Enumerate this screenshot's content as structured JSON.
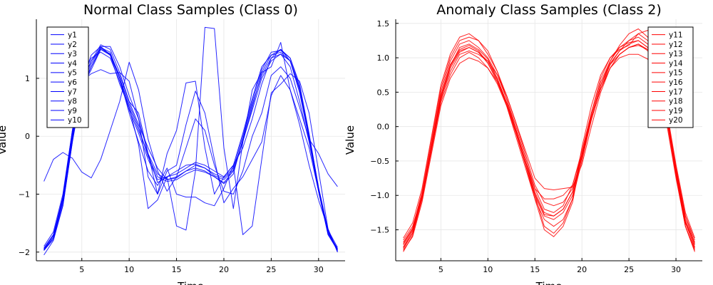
{
  "chart_data": [
    {
      "type": "line",
      "title": "Normal Class Samples (Class 0)",
      "xlabel": "Time",
      "ylabel": "Value",
      "xlim": [
        0.2,
        32.8
      ],
      "ylim": [
        -2.15,
        2.02
      ],
      "xticks": [
        5,
        10,
        15,
        20,
        25,
        30
      ],
      "yticks": [
        -2,
        -1,
        0,
        1
      ],
      "grid": true,
      "legend_position": "top-left",
      "line_color": "#0000ff",
      "x": [
        1,
        2,
        3,
        4,
        5,
        6,
        7,
        8,
        9,
        10,
        11,
        12,
        13,
        14,
        15,
        16,
        17,
        18,
        19,
        20,
        21,
        22,
        23,
        24,
        25,
        26,
        27,
        28,
        29,
        30,
        31,
        32
      ],
      "series": [
        {
          "name": "y1",
          "values": [
            -1.96,
            -1.75,
            -1.15,
            -0.05,
            0.85,
            1.15,
            1.5,
            1.4,
            0.9,
            0.5,
            0.1,
            -0.3,
            -0.65,
            -0.75,
            -0.7,
            -0.6,
            -0.55,
            -0.6,
            -0.7,
            -0.8,
            -0.6,
            -0.1,
            0.5,
            1.1,
            1.4,
            1.45,
            1.3,
            0.8,
            0.0,
            -0.9,
            -1.65,
            -1.95
          ]
        },
        {
          "name": "y2",
          "values": [
            -1.93,
            -1.7,
            -1.05,
            0.05,
            0.95,
            1.3,
            1.58,
            1.5,
            1.1,
            0.6,
            0.2,
            -0.2,
            -0.55,
            -0.75,
            -0.72,
            -0.6,
            -0.5,
            -0.55,
            -0.65,
            -0.72,
            -0.55,
            0.0,
            0.6,
            1.15,
            1.45,
            1.48,
            1.35,
            0.9,
            0.05,
            -0.9,
            -1.65,
            -1.96
          ]
        },
        {
          "name": "y3",
          "values": [
            -1.95,
            -1.72,
            -1.1,
            0.0,
            0.9,
            1.25,
            1.55,
            1.55,
            1.2,
            0.7,
            0.3,
            -0.3,
            -0.8,
            -0.7,
            -0.65,
            -0.55,
            -0.45,
            -0.5,
            -0.6,
            -0.7,
            -0.5,
            0.05,
            0.65,
            1.2,
            1.4,
            1.5,
            1.3,
            0.75,
            -0.05,
            -0.95,
            -1.7,
            -1.97
          ]
        },
        {
          "name": "y4",
          "values": [
            -1.97,
            -1.78,
            -1.2,
            -0.1,
            0.8,
            1.2,
            1.53,
            1.45,
            1.0,
            0.55,
            0.15,
            -0.35,
            -0.7,
            -0.78,
            -0.75,
            -0.65,
            -0.58,
            -0.62,
            -0.7,
            -0.82,
            -0.65,
            -0.05,
            0.55,
            1.05,
            1.35,
            1.5,
            1.35,
            0.85,
            0.0,
            -0.92,
            -1.68,
            -1.94
          ]
        },
        {
          "name": "y5",
          "values": [
            -1.9,
            -1.65,
            -1.0,
            0.1,
            1.0,
            1.35,
            1.45,
            1.35,
            0.95,
            0.45,
            0.05,
            -0.4,
            -0.75,
            -0.7,
            -0.6,
            -0.5,
            -0.48,
            -0.55,
            -0.68,
            -0.75,
            -0.58,
            -0.08,
            0.45,
            1.0,
            1.3,
            1.42,
            1.3,
            0.82,
            0.02,
            -0.88,
            -1.62,
            -1.92
          ]
        },
        {
          "name": "y6",
          "values": [
            -0.78,
            -0.4,
            -0.28,
            -0.38,
            -0.62,
            -0.72,
            -0.4,
            0.1,
            0.6,
            1.28,
            0.8,
            -0.05,
            -0.6,
            -0.95,
            -0.7,
            -0.2,
            0.3,
            0.1,
            -0.5,
            -0.95,
            -1.0,
            -0.6,
            0.0,
            0.4,
            1.05,
            1.2,
            1.0,
            0.5,
            -0.05,
            -0.3,
            -0.65,
            -0.87
          ]
        },
        {
          "name": "y7",
          "values": [
            -1.97,
            -1.75,
            -1.05,
            0.1,
            0.95,
            1.08,
            1.15,
            1.08,
            1.1,
            0.95,
            0.3,
            -0.7,
            -1.0,
            -0.6,
            -0.5,
            0.2,
            0.78,
            0.4,
            -0.4,
            -1.15,
            -0.9,
            -0.7,
            -0.4,
            -0.1,
            0.7,
            1.05,
            0.8,
            0.2,
            -0.5,
            -1.1,
            -1.6,
            -2.0
          ]
        },
        {
          "name": "y8",
          "values": [
            -1.94,
            -1.7,
            -1.08,
            0.0,
            0.9,
            1.2,
            1.5,
            1.42,
            1.05,
            0.6,
            0.4,
            -0.3,
            -1.0,
            -0.3,
            0.1,
            0.92,
            0.95,
            -0.2,
            -1.0,
            -0.7,
            -0.5,
            -0.2,
            0.3,
            0.9,
            1.35,
            1.42,
            1.2,
            0.6,
            -0.1,
            -0.95,
            -1.7,
            -1.95
          ]
        },
        {
          "name": "y9",
          "values": [
            -2.05,
            -1.8,
            -1.2,
            -0.1,
            0.95,
            1.4,
            1.55,
            1.4,
            1.0,
            0.4,
            -0.1,
            -0.6,
            -0.85,
            -0.55,
            -1.0,
            -1.05,
            -1.05,
            -1.15,
            -1.2,
            -0.9,
            -0.5,
            -1.7,
            -1.55,
            -0.4,
            0.75,
            0.9,
            1.08,
            0.95,
            0.4,
            -0.6,
            -1.6,
            -2.0
          ]
        },
        {
          "name": "y10",
          "values": [
            -1.97,
            -1.75,
            -1.1,
            0.0,
            0.9,
            1.3,
            1.52,
            1.42,
            1.0,
            0.5,
            -0.15,
            -1.25,
            -1.1,
            -0.7,
            -1.55,
            -1.62,
            -0.6,
            1.88,
            1.86,
            -0.2,
            -1.25,
            -0.1,
            0.8,
            1.1,
            1.2,
            1.62,
            0.8,
            0.3,
            -0.2,
            -0.95,
            -1.65,
            -1.98
          ]
        }
      ]
    },
    {
      "type": "line",
      "title": "Anomaly Class Samples (Class 2)",
      "xlabel": "Time",
      "ylabel": "Value",
      "xlim": [
        0.2,
        32.8
      ],
      "ylim": [
        -1.95,
        1.56
      ],
      "xticks": [
        5,
        10,
        15,
        20,
        25,
        30
      ],
      "yticks": [
        -1.5,
        -1.0,
        -0.5,
        0.0,
        0.5,
        1.0,
        1.5
      ],
      "ytick_labels": [
        "−1.5",
        "−1.0",
        "−0.5",
        "0.0",
        "0.5",
        "1.0",
        "1.5"
      ],
      "grid": true,
      "legend_position": "top-right",
      "line_color": "#ff0000",
      "x": [
        1,
        2,
        3,
        4,
        5,
        6,
        7,
        8,
        9,
        10,
        11,
        12,
        13,
        14,
        15,
        16,
        17,
        18,
        19,
        20,
        21,
        22,
        23,
        24,
        25,
        26,
        27,
        28,
        29,
        30,
        31,
        32
      ],
      "series": [
        {
          "name": "y11",
          "values": [
            -1.65,
            -1.45,
            -1.0,
            -0.3,
            0.4,
            0.8,
            1.05,
            1.1,
            1.05,
            0.95,
            0.75,
            0.45,
            0.05,
            -0.4,
            -0.85,
            -1.1,
            -1.15,
            -1.1,
            -0.9,
            -0.45,
            0.1,
            0.55,
            0.85,
            1.05,
            1.15,
            1.2,
            1.1,
            0.8,
            0.2,
            -0.6,
            -1.3,
            -1.65
          ]
        },
        {
          "name": "y12",
          "values": [
            -1.72,
            -1.5,
            -1.05,
            -0.35,
            0.35,
            0.75,
            1.0,
            1.08,
            1.0,
            0.85,
            0.65,
            0.35,
            -0.05,
            -0.5,
            -0.95,
            -1.25,
            -1.3,
            -1.2,
            -0.95,
            -0.45,
            0.1,
            0.55,
            0.9,
            1.1,
            1.2,
            1.25,
            1.15,
            0.85,
            0.2,
            -0.65,
            -1.35,
            -1.72
          ]
        },
        {
          "name": "y13",
          "values": [
            -1.78,
            -1.55,
            -1.0,
            -0.25,
            0.5,
            0.95,
            1.2,
            1.25,
            1.15,
            1.0,
            0.75,
            0.4,
            0.0,
            -0.45,
            -0.9,
            -1.2,
            -1.25,
            -1.15,
            -0.85,
            -0.35,
            0.2,
            0.65,
            0.95,
            1.15,
            1.25,
            1.3,
            1.2,
            0.85,
            0.15,
            -0.7,
            -1.45,
            -1.78
          ]
        },
        {
          "name": "y14",
          "values": [
            -1.8,
            -1.6,
            -1.1,
            -0.4,
            0.3,
            0.7,
            0.92,
            1.0,
            0.95,
            0.85,
            0.62,
            0.3,
            -0.15,
            -0.6,
            -1.05,
            -1.35,
            -1.45,
            -1.35,
            -1.05,
            -0.5,
            0.1,
            0.55,
            0.85,
            1.0,
            1.05,
            1.05,
            0.98,
            0.7,
            0.05,
            -0.75,
            -1.45,
            -1.8
          ]
        },
        {
          "name": "y15",
          "values": [
            -1.7,
            -1.48,
            -0.95,
            -0.2,
            0.55,
            1.0,
            1.25,
            1.3,
            1.25,
            1.1,
            0.8,
            0.4,
            -0.05,
            -0.5,
            -0.9,
            -1.05,
            -1.05,
            -1.0,
            -0.85,
            -0.4,
            0.15,
            0.6,
            0.9,
            1.05,
            1.15,
            1.18,
            1.12,
            0.8,
            0.15,
            -0.6,
            -1.3,
            -1.7
          ]
        },
        {
          "name": "y16",
          "values": [
            -1.62,
            -1.4,
            -0.9,
            -0.15,
            0.6,
            1.05,
            1.3,
            1.35,
            1.25,
            1.05,
            0.8,
            0.45,
            0.05,
            -0.35,
            -0.75,
            -0.9,
            -0.92,
            -0.9,
            -0.88,
            -0.55,
            0.0,
            0.5,
            0.85,
            1.05,
            1.15,
            1.2,
            1.12,
            0.82,
            0.25,
            -0.55,
            -1.25,
            -1.62
          ]
        },
        {
          "name": "y17",
          "values": [
            -1.82,
            -1.58,
            -1.05,
            -0.3,
            0.45,
            0.9,
            1.12,
            1.18,
            1.1,
            0.92,
            0.65,
            0.3,
            -0.1,
            -0.55,
            -1.0,
            -1.3,
            -1.35,
            -1.25,
            -1.0,
            -0.45,
            0.15,
            0.6,
            0.95,
            1.18,
            1.35,
            1.42,
            1.3,
            0.9,
            0.2,
            -0.7,
            -1.45,
            -1.82
          ]
        },
        {
          "name": "y18",
          "values": [
            -1.75,
            -1.52,
            -1.02,
            -0.3,
            0.42,
            0.88,
            1.1,
            1.15,
            1.08,
            0.95,
            0.7,
            0.35,
            -0.05,
            -0.5,
            -0.98,
            -1.28,
            -1.3,
            -1.2,
            -0.95,
            -0.4,
            0.15,
            0.6,
            0.92,
            1.1,
            1.25,
            1.35,
            1.25,
            0.88,
            0.18,
            -0.68,
            -1.4,
            -1.75
          ]
        },
        {
          "name": "y19",
          "values": [
            -1.68,
            -1.48,
            -1.0,
            -0.3,
            0.45,
            0.88,
            1.15,
            1.2,
            1.12,
            0.98,
            0.7,
            0.35,
            -0.08,
            -0.55,
            -1.05,
            -1.5,
            -1.6,
            -1.45,
            -1.1,
            -0.4,
            0.2,
            0.7,
            1.0,
            1.15,
            1.22,
            1.25,
            1.15,
            0.8,
            0.1,
            -0.7,
            -1.4,
            -1.68
          ]
        },
        {
          "name": "y20",
          "values": [
            -1.76,
            -1.55,
            -1.05,
            -0.32,
            0.38,
            0.85,
            1.08,
            1.15,
            1.08,
            0.92,
            0.68,
            0.32,
            -0.1,
            -0.55,
            -1.0,
            -1.45,
            -1.55,
            -1.4,
            -1.05,
            -0.3,
            0.3,
            0.75,
            1.0,
            1.12,
            1.18,
            1.35,
            1.4,
            0.95,
            0.2,
            -0.62,
            -1.38,
            -1.76
          ]
        }
      ]
    }
  ]
}
